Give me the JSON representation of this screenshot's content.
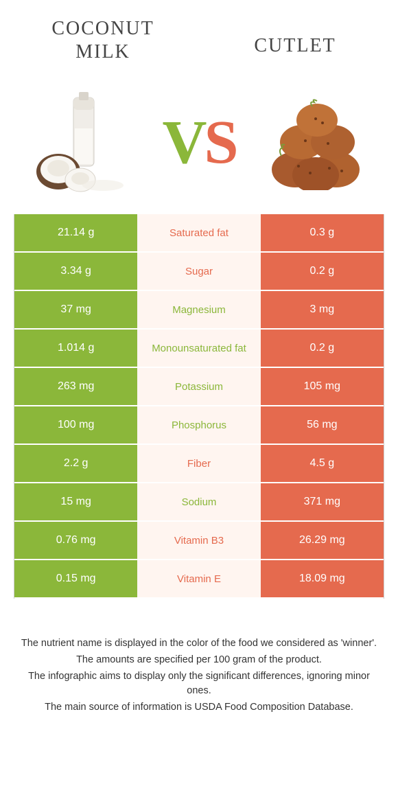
{
  "colors": {
    "green": "#8bb73a",
    "orange": "#e56a4e",
    "mid_bg": "#fff5f0"
  },
  "left_title": "Coconut milk",
  "right_title": "Cutlet",
  "vs": {
    "v": "V",
    "s": "S"
  },
  "rows": [
    {
      "left": "21.14 g",
      "label": "Saturated fat",
      "winner": "orange",
      "right": "0.3 g"
    },
    {
      "left": "3.34 g",
      "label": "Sugar",
      "winner": "orange",
      "right": "0.2 g"
    },
    {
      "left": "37 mg",
      "label": "Magnesium",
      "winner": "green",
      "right": "3 mg"
    },
    {
      "left": "1.014 g",
      "label": "Monounsaturated fat",
      "winner": "green",
      "right": "0.2 g"
    },
    {
      "left": "263 mg",
      "label": "Potassium",
      "winner": "green",
      "right": "105 mg"
    },
    {
      "left": "100 mg",
      "label": "Phosphorus",
      "winner": "green",
      "right": "56 mg"
    },
    {
      "left": "2.2 g",
      "label": "Fiber",
      "winner": "orange",
      "right": "4.5 g"
    },
    {
      "left": "15 mg",
      "label": "Sodium",
      "winner": "green",
      "right": "371 mg"
    },
    {
      "left": "0.76 mg",
      "label": "Vitamin B3",
      "winner": "orange",
      "right": "26.29 mg"
    },
    {
      "left": "0.15 mg",
      "label": "Vitamin E",
      "winner": "orange",
      "right": "18.09 mg"
    }
  ],
  "footnotes": [
    "The nutrient name is displayed in the color of the food we considered as 'winner'.",
    "The amounts are specified per 100 gram of the product.",
    "The infographic aims to display only the significant differences, ignoring minor ones.",
    "The main source of information is USDA Food Composition Database."
  ]
}
